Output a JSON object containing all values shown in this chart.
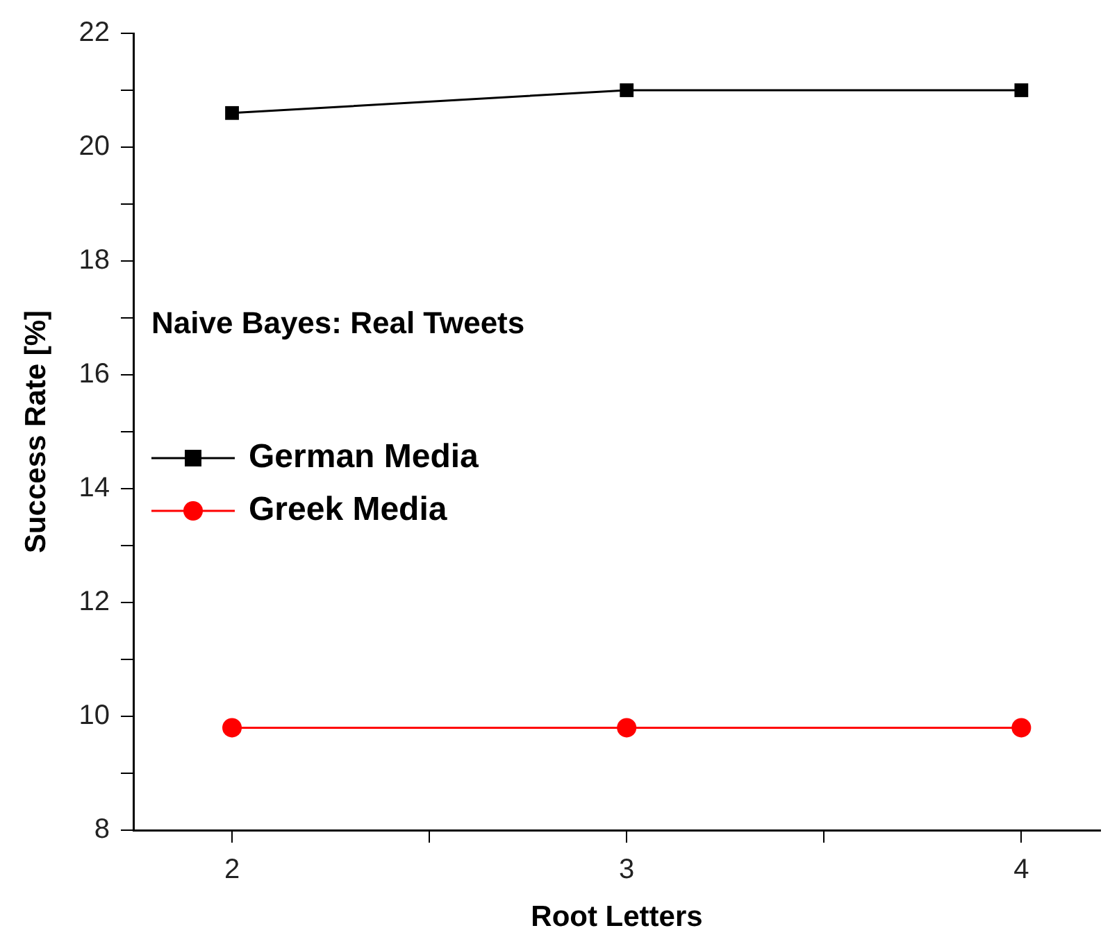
{
  "chart_data": {
    "type": "line",
    "xlabel": "Root Letters",
    "ylabel": "Success Rate [%]",
    "annotations": [
      "Naive Bayes: Real Tweets"
    ],
    "x": [
      2,
      3,
      4
    ],
    "series": [
      {
        "name": "German Media",
        "color": "#000000",
        "marker": "square",
        "values": [
          20.6,
          21.0,
          21.0
        ]
      },
      {
        "name": "Greek Media",
        "color": "#ff0000",
        "marker": "circle",
        "values": [
          9.8,
          9.8,
          9.8
        ]
      }
    ],
    "xlim": [
      1.75,
      4.2
    ],
    "xticks": [
      2,
      {
        "value": 2.5,
        "label": null
      },
      3,
      {
        "value": 3.5,
        "label": null
      },
      4
    ],
    "ylim": [
      8,
      22
    ],
    "yticks": [
      8,
      {
        "value": 9,
        "label": null
      },
      10,
      {
        "value": 11,
        "label": null
      },
      12,
      {
        "value": 13,
        "label": null
      },
      14,
      {
        "value": 15,
        "label": null
      },
      16,
      {
        "value": 17,
        "label": null
      },
      18,
      {
        "value": 19,
        "label": null
      },
      20,
      {
        "value": 21,
        "label": null
      },
      22
    ],
    "grid": false,
    "legend": "left",
    "line_style": "solid"
  }
}
